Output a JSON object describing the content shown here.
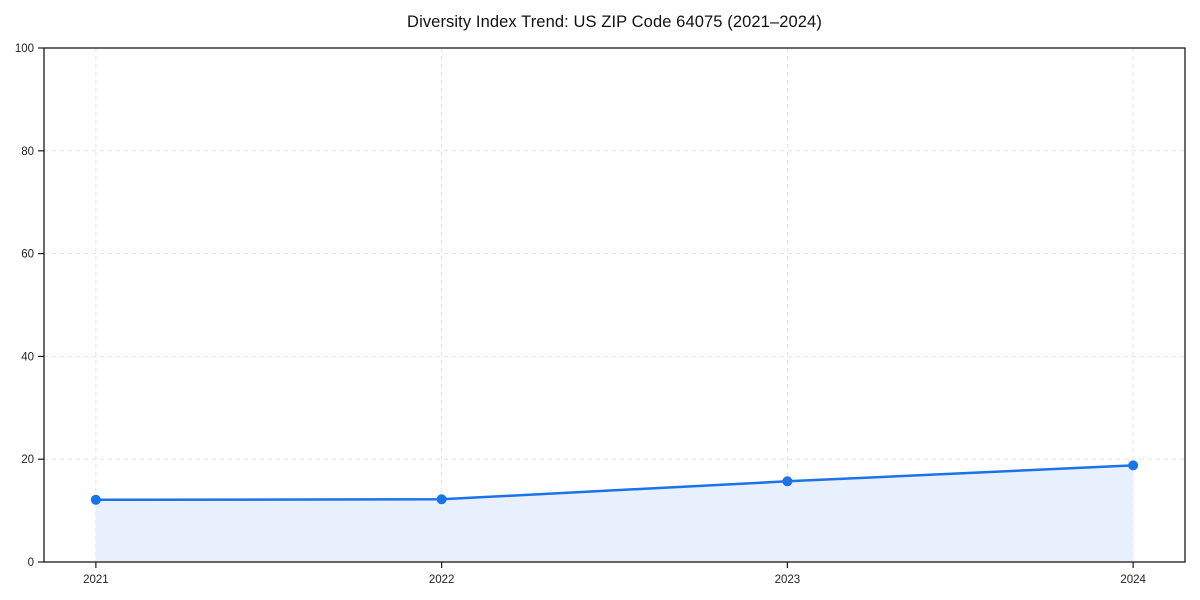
{
  "chart_data": {
    "type": "line",
    "title": "Diversity Index Trend: US ZIP Code 64075 (2021–2024)",
    "categories": [
      "2021",
      "2022",
      "2023",
      "2024"
    ],
    "series": [
      {
        "name": "Diversity Index",
        "values": [
          12.1,
          12.2,
          15.7,
          18.8
        ]
      }
    ],
    "xlabel": "",
    "ylabel": "",
    "ylim": [
      0,
      100
    ],
    "yticks": [
      0,
      20,
      40,
      60,
      80,
      100
    ],
    "grid": true,
    "grid_style": "dashed",
    "legend_position": "none",
    "area_under_line": true,
    "marker": "circle",
    "colors": {
      "line": "#1a73e8",
      "marker": "#1a73e8",
      "area": "#e8f0fd",
      "grid": "#e3e3e3",
      "frame": "#1a1a1a",
      "tick_label": "#222222",
      "title": "#111111",
      "background": "#ffffff"
    }
  }
}
